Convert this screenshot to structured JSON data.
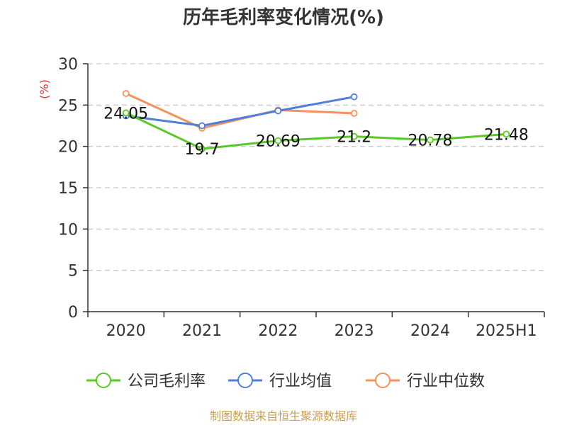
{
  "chart_data": {
    "type": "line",
    "title": "历年毛利率变化情况(%)",
    "ylabel": "(%)",
    "categories": [
      "2020",
      "2021",
      "2022",
      "2023",
      "2024",
      "2025H1"
    ],
    "ylim": [
      0,
      30
    ],
    "yticks": [
      0,
      5,
      10,
      15,
      20,
      25,
      30
    ],
    "grid": true,
    "legend_position": "bottom",
    "series": [
      {
        "name": "公司毛利率",
        "color": "#5ac827",
        "values": [
          24.05,
          19.7,
          20.69,
          21.2,
          20.78,
          21.48
        ],
        "labels": [
          "24.05",
          "19.7",
          "20.69",
          "21.2",
          "20.78",
          "21.48"
        ]
      },
      {
        "name": "行业均值",
        "color": "#4f7fdb",
        "values": [
          23.7,
          22.5,
          24.3,
          26.0,
          null,
          null
        ]
      },
      {
        "name": "行业中位数",
        "color": "#f5915a",
        "values": [
          26.4,
          22.2,
          24.4,
          24.0,
          null,
          null
        ]
      }
    ]
  },
  "source": "制图数据来自恒生聚源数据库",
  "colors": {
    "unit_label": "#e03030",
    "source_text": "#c8a050"
  }
}
